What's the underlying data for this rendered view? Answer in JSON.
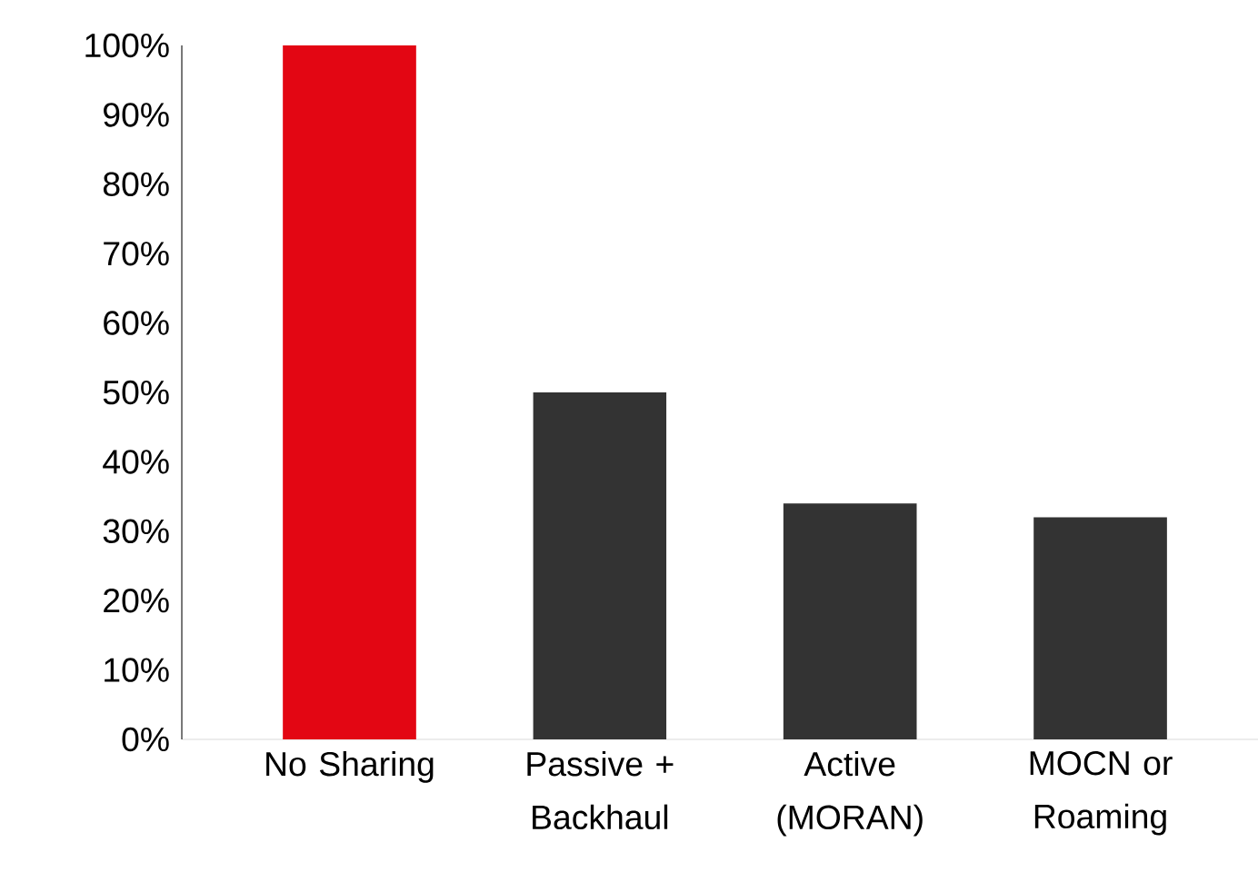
{
  "chart_data": {
    "type": "bar",
    "categories": [
      "No Sharing",
      "Passive + Backhaul",
      "Active (MORAN)",
      "MOCN or Roaming"
    ],
    "values": [
      100,
      50,
      34,
      32
    ],
    "colors": [
      "#e30613",
      "#333333",
      "#333333",
      "#333333"
    ],
    "ylim": [
      0,
      100
    ],
    "yticks": [
      {
        "value": 0,
        "label": "0%"
      },
      {
        "value": 10,
        "label": "10%"
      },
      {
        "value": 20,
        "label": "20%"
      },
      {
        "value": 30,
        "label": "30%"
      },
      {
        "value": 40,
        "label": "40%"
      },
      {
        "value": 50,
        "label": "50%"
      },
      {
        "value": 60,
        "label": "60%"
      },
      {
        "value": 70,
        "label": "70%"
      },
      {
        "value": 80,
        "label": "80%"
      },
      {
        "value": 90,
        "label": "90%"
      },
      {
        "value": 100,
        "label": "100%"
      }
    ],
    "grid": false
  }
}
